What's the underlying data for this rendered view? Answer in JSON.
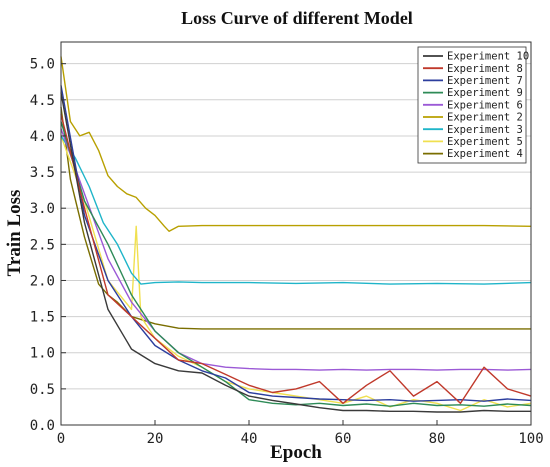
{
  "chart_data": {
    "type": "line",
    "title": "Loss Curve of different Model",
    "xlabel": "Epoch",
    "ylabel": "Train Loss",
    "xlim": [
      0,
      100
    ],
    "ylim": [
      0,
      5.3
    ],
    "xticks": [
      "0",
      "20",
      "40",
      "60",
      "80",
      "100"
    ],
    "yticks": [
      "0.0",
      "0.5",
      "1.0",
      "1.5",
      "2.0",
      "2.5",
      "3.0",
      "3.5",
      "4.0",
      "4.5",
      "5.0"
    ],
    "grid": "horizontal",
    "legend_position": "top-right",
    "series": [
      {
        "name": "Experiment 10",
        "color": "#3a3a3a",
        "x": [
          0,
          5,
          10,
          15,
          20,
          25,
          30,
          35,
          40,
          45,
          50,
          55,
          60,
          65,
          70,
          75,
          80,
          85,
          90,
          95,
          100
        ],
        "y": [
          4.6,
          2.8,
          1.6,
          1.05,
          0.85,
          0.75,
          0.72,
          0.55,
          0.4,
          0.34,
          0.29,
          0.24,
          0.2,
          0.2,
          0.19,
          0.19,
          0.18,
          0.18,
          0.2,
          0.19,
          0.19
        ]
      },
      {
        "name": "Experiment 8",
        "color": "#c0392b",
        "x": [
          0,
          5,
          10,
          15,
          20,
          25,
          30,
          35,
          40,
          45,
          50,
          55,
          60,
          65,
          70,
          75,
          80,
          85,
          90,
          95,
          100
        ],
        "y": [
          4.3,
          3.0,
          1.8,
          1.5,
          1.2,
          0.9,
          0.85,
          0.7,
          0.55,
          0.45,
          0.5,
          0.6,
          0.3,
          0.55,
          0.75,
          0.4,
          0.6,
          0.3,
          0.8,
          0.5,
          0.4
        ]
      },
      {
        "name": "Experiment 7",
        "color": "#2c3e9e",
        "x": [
          0,
          5,
          10,
          15,
          20,
          25,
          30,
          35,
          40,
          45,
          50,
          55,
          60,
          65,
          70,
          75,
          80,
          85,
          90,
          95,
          100
        ],
        "y": [
          4.7,
          2.9,
          2.0,
          1.5,
          1.1,
          0.9,
          0.75,
          0.65,
          0.45,
          0.4,
          0.38,
          0.36,
          0.35,
          0.34,
          0.35,
          0.33,
          0.34,
          0.35,
          0.33,
          0.36,
          0.34
        ]
      },
      {
        "name": "Experiment 9",
        "color": "#2e8b57",
        "x": [
          0,
          5,
          10,
          15,
          20,
          25,
          30,
          35,
          40,
          45,
          50,
          55,
          60,
          65,
          70,
          75,
          80,
          85,
          90,
          95,
          100
        ],
        "y": [
          4.2,
          3.1,
          2.5,
          1.8,
          1.3,
          1.0,
          0.8,
          0.6,
          0.35,
          0.3,
          0.28,
          0.3,
          0.27,
          0.29,
          0.26,
          0.3,
          0.27,
          0.28,
          0.26,
          0.29,
          0.27
        ]
      },
      {
        "name": "Experiment 6",
        "color": "#9b59d6",
        "x": [
          0,
          5,
          10,
          15,
          20,
          25,
          30,
          35,
          40,
          45,
          50,
          55,
          60,
          65,
          70,
          75,
          80,
          85,
          90,
          95,
          100
        ],
        "y": [
          4.1,
          3.2,
          2.3,
          1.7,
          1.3,
          1.0,
          0.85,
          0.8,
          0.78,
          0.77,
          0.77,
          0.76,
          0.77,
          0.76,
          0.77,
          0.77,
          0.76,
          0.77,
          0.77,
          0.76,
          0.77
        ]
      },
      {
        "name": "Experiment 2",
        "color": "#b8a000",
        "x": [
          0,
          2,
          4,
          6,
          8,
          10,
          12,
          14,
          16,
          18,
          20,
          22,
          23,
          25,
          30,
          40,
          50,
          60,
          70,
          80,
          90,
          100
        ],
        "y": [
          5.1,
          4.2,
          4.0,
          4.05,
          3.8,
          3.45,
          3.3,
          3.2,
          3.15,
          3.0,
          2.9,
          2.75,
          2.68,
          2.75,
          2.76,
          2.76,
          2.76,
          2.76,
          2.76,
          2.76,
          2.76,
          2.75
        ]
      },
      {
        "name": "Experiment 3",
        "color": "#1fb5c9",
        "x": [
          0,
          3,
          6,
          9,
          12,
          15,
          17,
          20,
          25,
          30,
          40,
          50,
          60,
          70,
          80,
          90,
          100
        ],
        "y": [
          4.0,
          3.7,
          3.3,
          2.8,
          2.5,
          2.1,
          1.95,
          1.97,
          1.98,
          1.97,
          1.97,
          1.96,
          1.97,
          1.95,
          1.96,
          1.95,
          1.97
        ]
      },
      {
        "name": "Experiment 5",
        "color": "#f0e050",
        "x": [
          0,
          5,
          10,
          15,
          16,
          17,
          20,
          25,
          30,
          35,
          40,
          45,
          50,
          55,
          60,
          65,
          70,
          75,
          80,
          85,
          90,
          95,
          100
        ],
        "y": [
          4.0,
          3.1,
          2.0,
          1.6,
          2.75,
          1.5,
          1.2,
          0.95,
          0.8,
          0.6,
          0.5,
          0.45,
          0.4,
          0.35,
          0.3,
          0.4,
          0.25,
          0.35,
          0.3,
          0.2,
          0.35,
          0.25,
          0.3
        ]
      },
      {
        "name": "Experiment 4",
        "color": "#7a6e00",
        "x": [
          0,
          2,
          5,
          8,
          10,
          12,
          15,
          20,
          25,
          30,
          40,
          50,
          60,
          70,
          80,
          90,
          100
        ],
        "y": [
          4.4,
          3.4,
          2.6,
          1.95,
          1.8,
          1.7,
          1.5,
          1.4,
          1.34,
          1.33,
          1.33,
          1.33,
          1.33,
          1.33,
          1.33,
          1.33,
          1.33
        ]
      }
    ]
  }
}
